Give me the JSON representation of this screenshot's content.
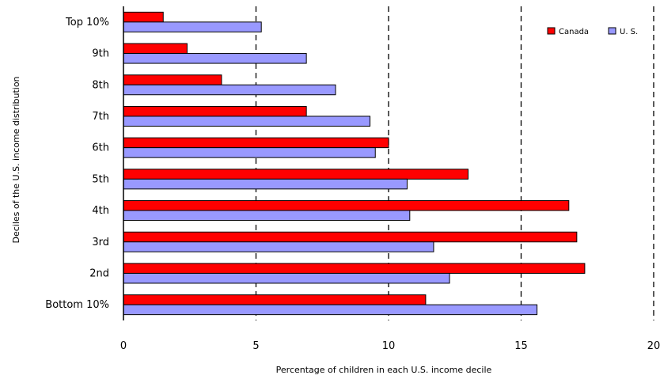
{
  "chart_data": {
    "type": "bar",
    "orientation": "horizontal",
    "categories": [
      "Top 10%",
      "9th",
      "8th",
      "7th",
      "6th",
      "5th",
      "4th",
      "3rd",
      "2nd",
      "Bottom 10%"
    ],
    "series": [
      {
        "name": "Canada",
        "color": "#ff0000",
        "values": [
          1.5,
          2.4,
          3.7,
          6.9,
          10.0,
          13.0,
          16.8,
          17.1,
          17.4,
          11.4
        ]
      },
      {
        "name": "U. S.",
        "color": "#9999ff",
        "values": [
          5.2,
          6.9,
          8.0,
          9.3,
          9.5,
          10.7,
          10.8,
          11.7,
          12.3,
          15.6
        ]
      }
    ],
    "xlabel": "Percentage of children in each U.S. income decile",
    "ylabel": "Deciles of the U.S. income distribution",
    "xlim": [
      0,
      20
    ],
    "xticks": [
      "0",
      "5",
      "10",
      "15",
      "20"
    ],
    "grid": "vertical dashed",
    "legend_position": "top-right"
  }
}
